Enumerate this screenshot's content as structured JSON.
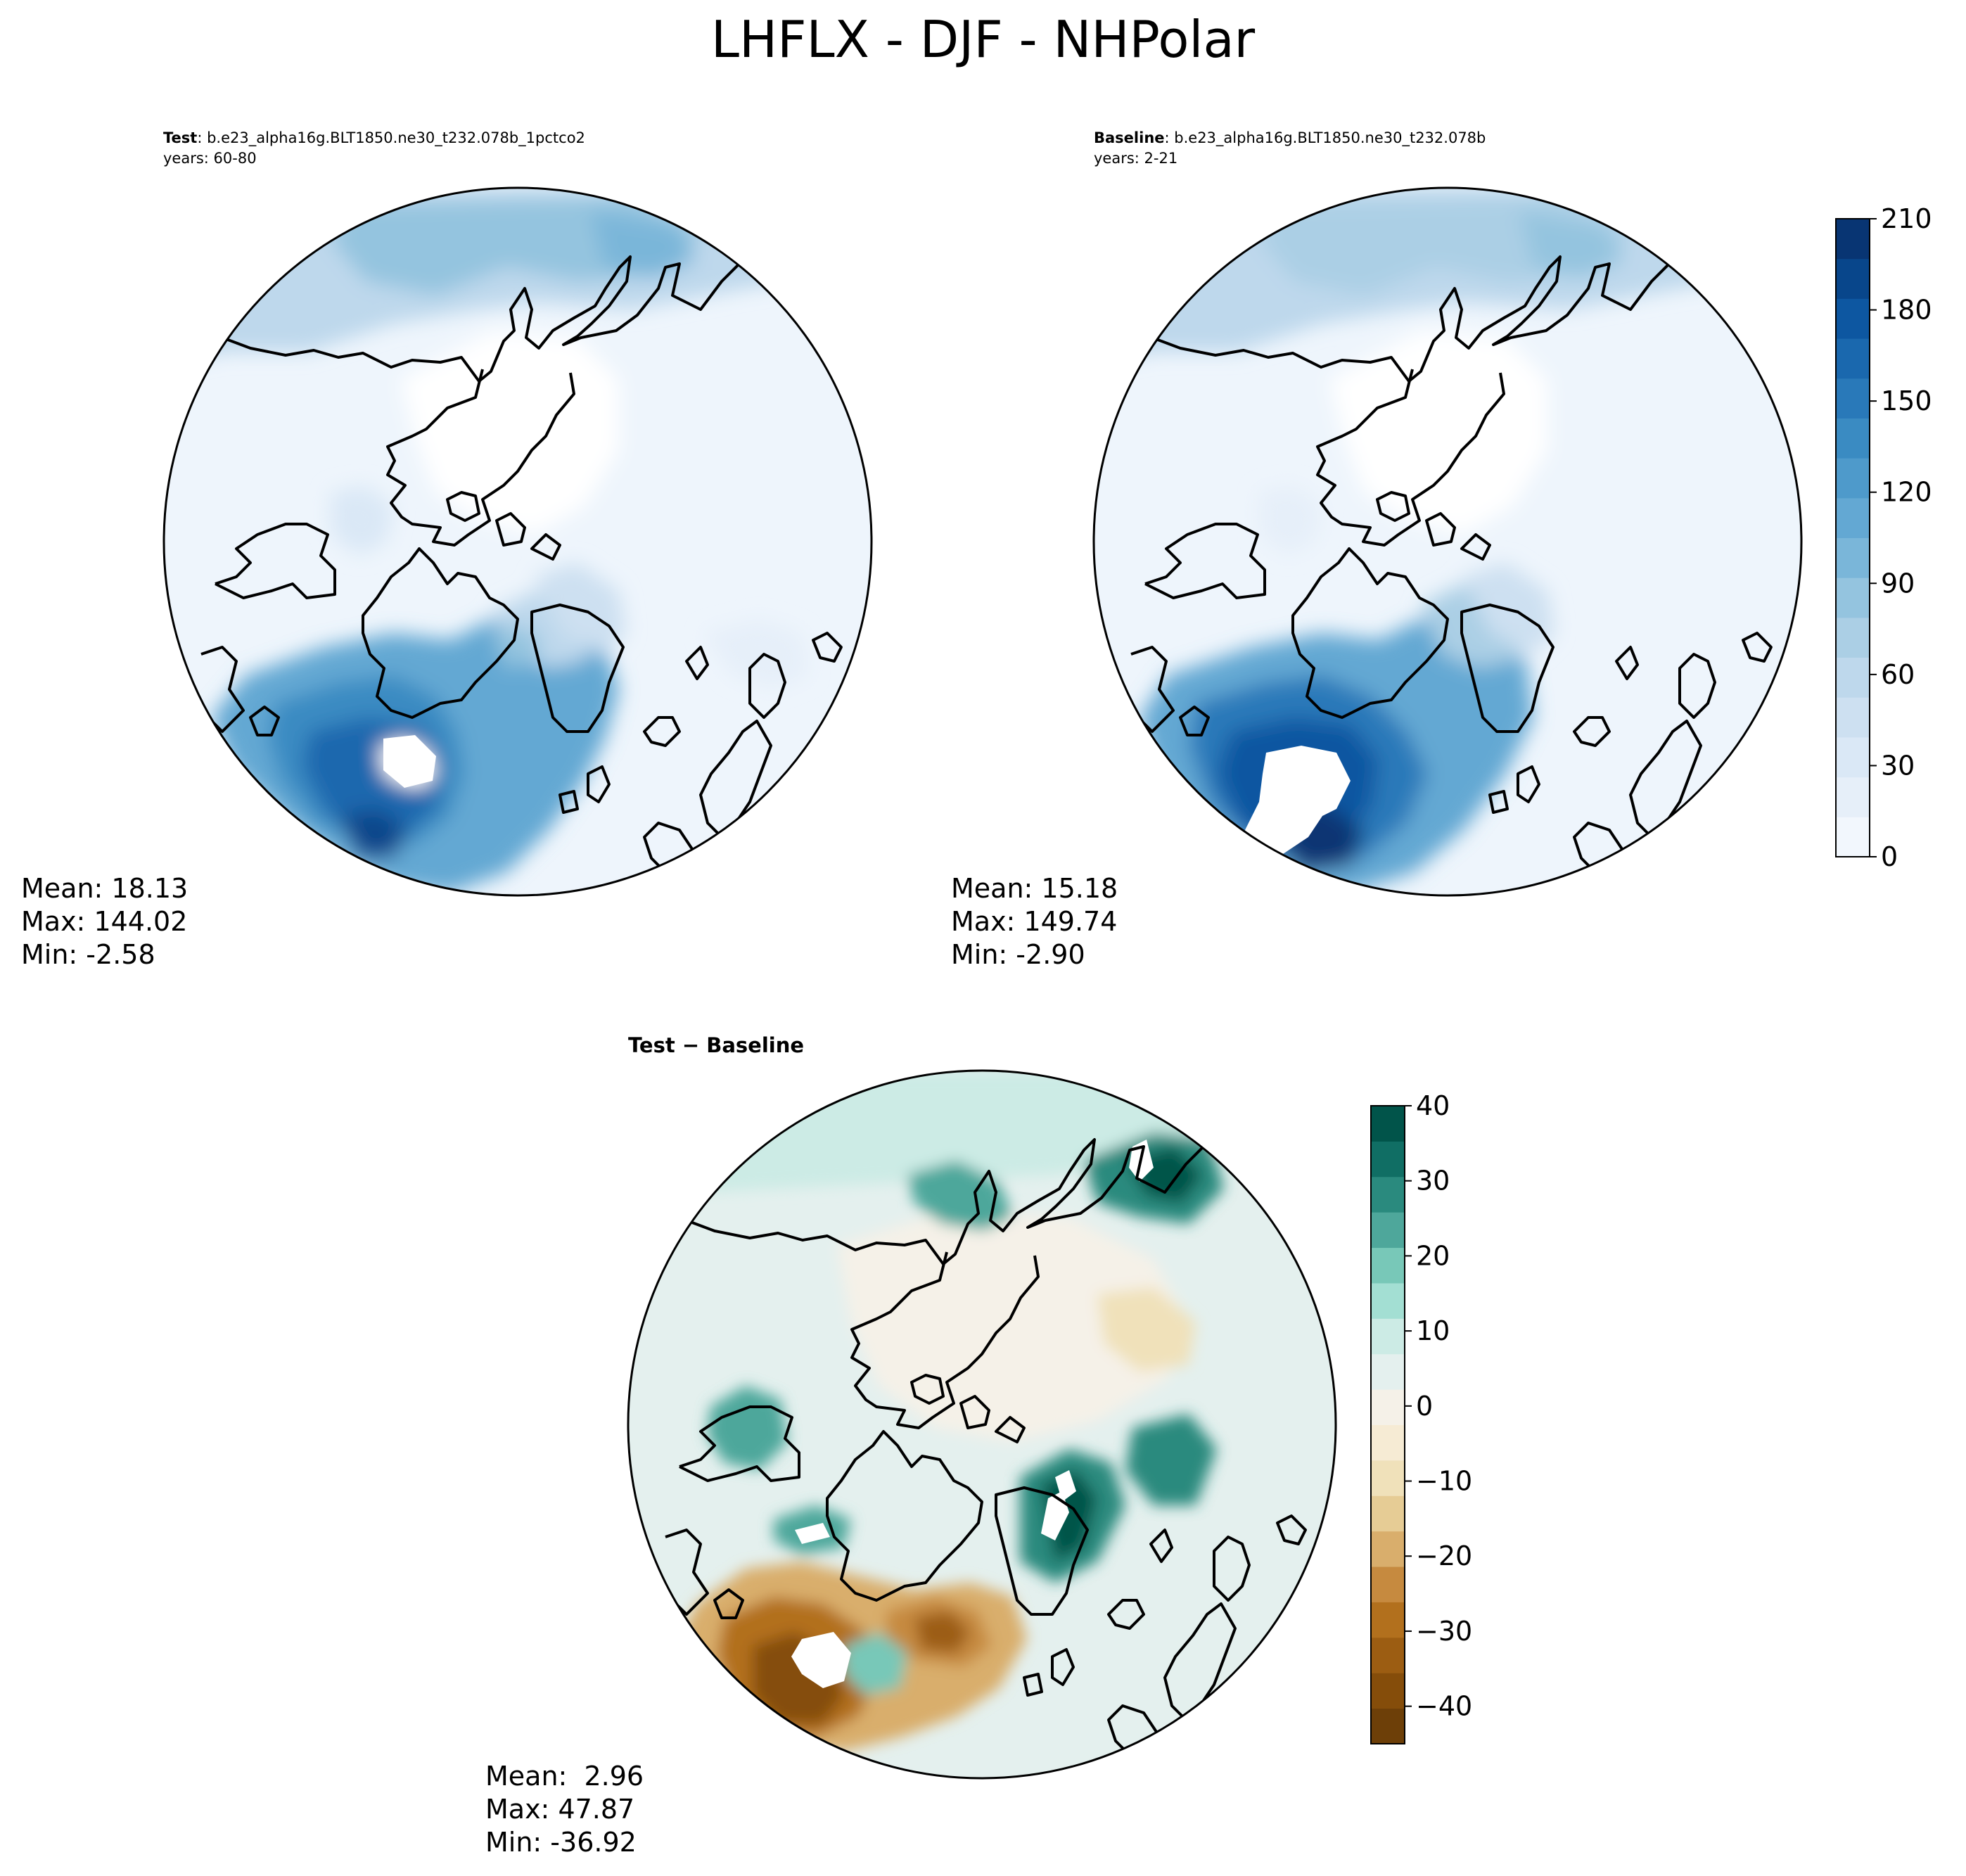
{
  "title": "LHFLX - DJF - NHPolar",
  "panels": [
    {
      "id": "test",
      "label": "Test",
      "case": ": b.e23_alpha16g.BLT1850.ne30_t232.078b_1pctco2",
      "years": "years: 60-80",
      "stats": {
        "mean": "Mean: 18.13",
        "max": "Max: 144.02",
        "min": "Min: -2.58"
      }
    },
    {
      "id": "baseline",
      "label": "Baseline",
      "case": ": b.e23_alpha16g.BLT1850.ne30_t232.078b",
      "years": "years: 2-21",
      "stats": {
        "mean": "Mean: 15.18",
        "max": "Max: 149.74",
        "min": "Min: -2.90"
      }
    },
    {
      "id": "difference",
      "label": "Test − Baseline",
      "stats": {
        "mean": "Mean:  2.96",
        "max": "Max: 47.87",
        "min": "Min: -36.92"
      }
    }
  ],
  "colorbars": {
    "absolute": {
      "colormap": "Blues",
      "range": [
        0,
        210
      ],
      "ticks": [
        "0",
        "30",
        "60",
        "90",
        "120",
        "150",
        "180",
        "210"
      ],
      "colors": [
        "#f2f7fd",
        "#e6eff9",
        "#dae8f6",
        "#cde0f1",
        "#bed8ec",
        "#abcfe5",
        "#94c4df",
        "#7ab6d9",
        "#63a8d3",
        "#4e9acb",
        "#3a8bc2",
        "#2979b9",
        "#1a68ae",
        "#0d57a1",
        "#08468b",
        "#083573"
      ]
    },
    "difference": {
      "colormap": "BrBG",
      "range": [
        -45,
        40
      ],
      "ticks": [
        "40",
        "30",
        "20",
        "10",
        "0",
        "−10",
        "−20",
        "−30",
        "−40"
      ],
      "colors": [
        "#6d3f08",
        "#854d0a",
        "#9c5d12",
        "#b2701d",
        "#c68a3f",
        "#d9ae6c",
        "#e6cc95",
        "#f0e1ba",
        "#f6ebd4",
        "#f5f1e8",
        "#e4f0ee",
        "#ccebe5",
        "#a3dfd3",
        "#78c8b8",
        "#4ea79b",
        "#2a8a7e",
        "#106e64",
        "#01544a"
      ]
    }
  }
}
